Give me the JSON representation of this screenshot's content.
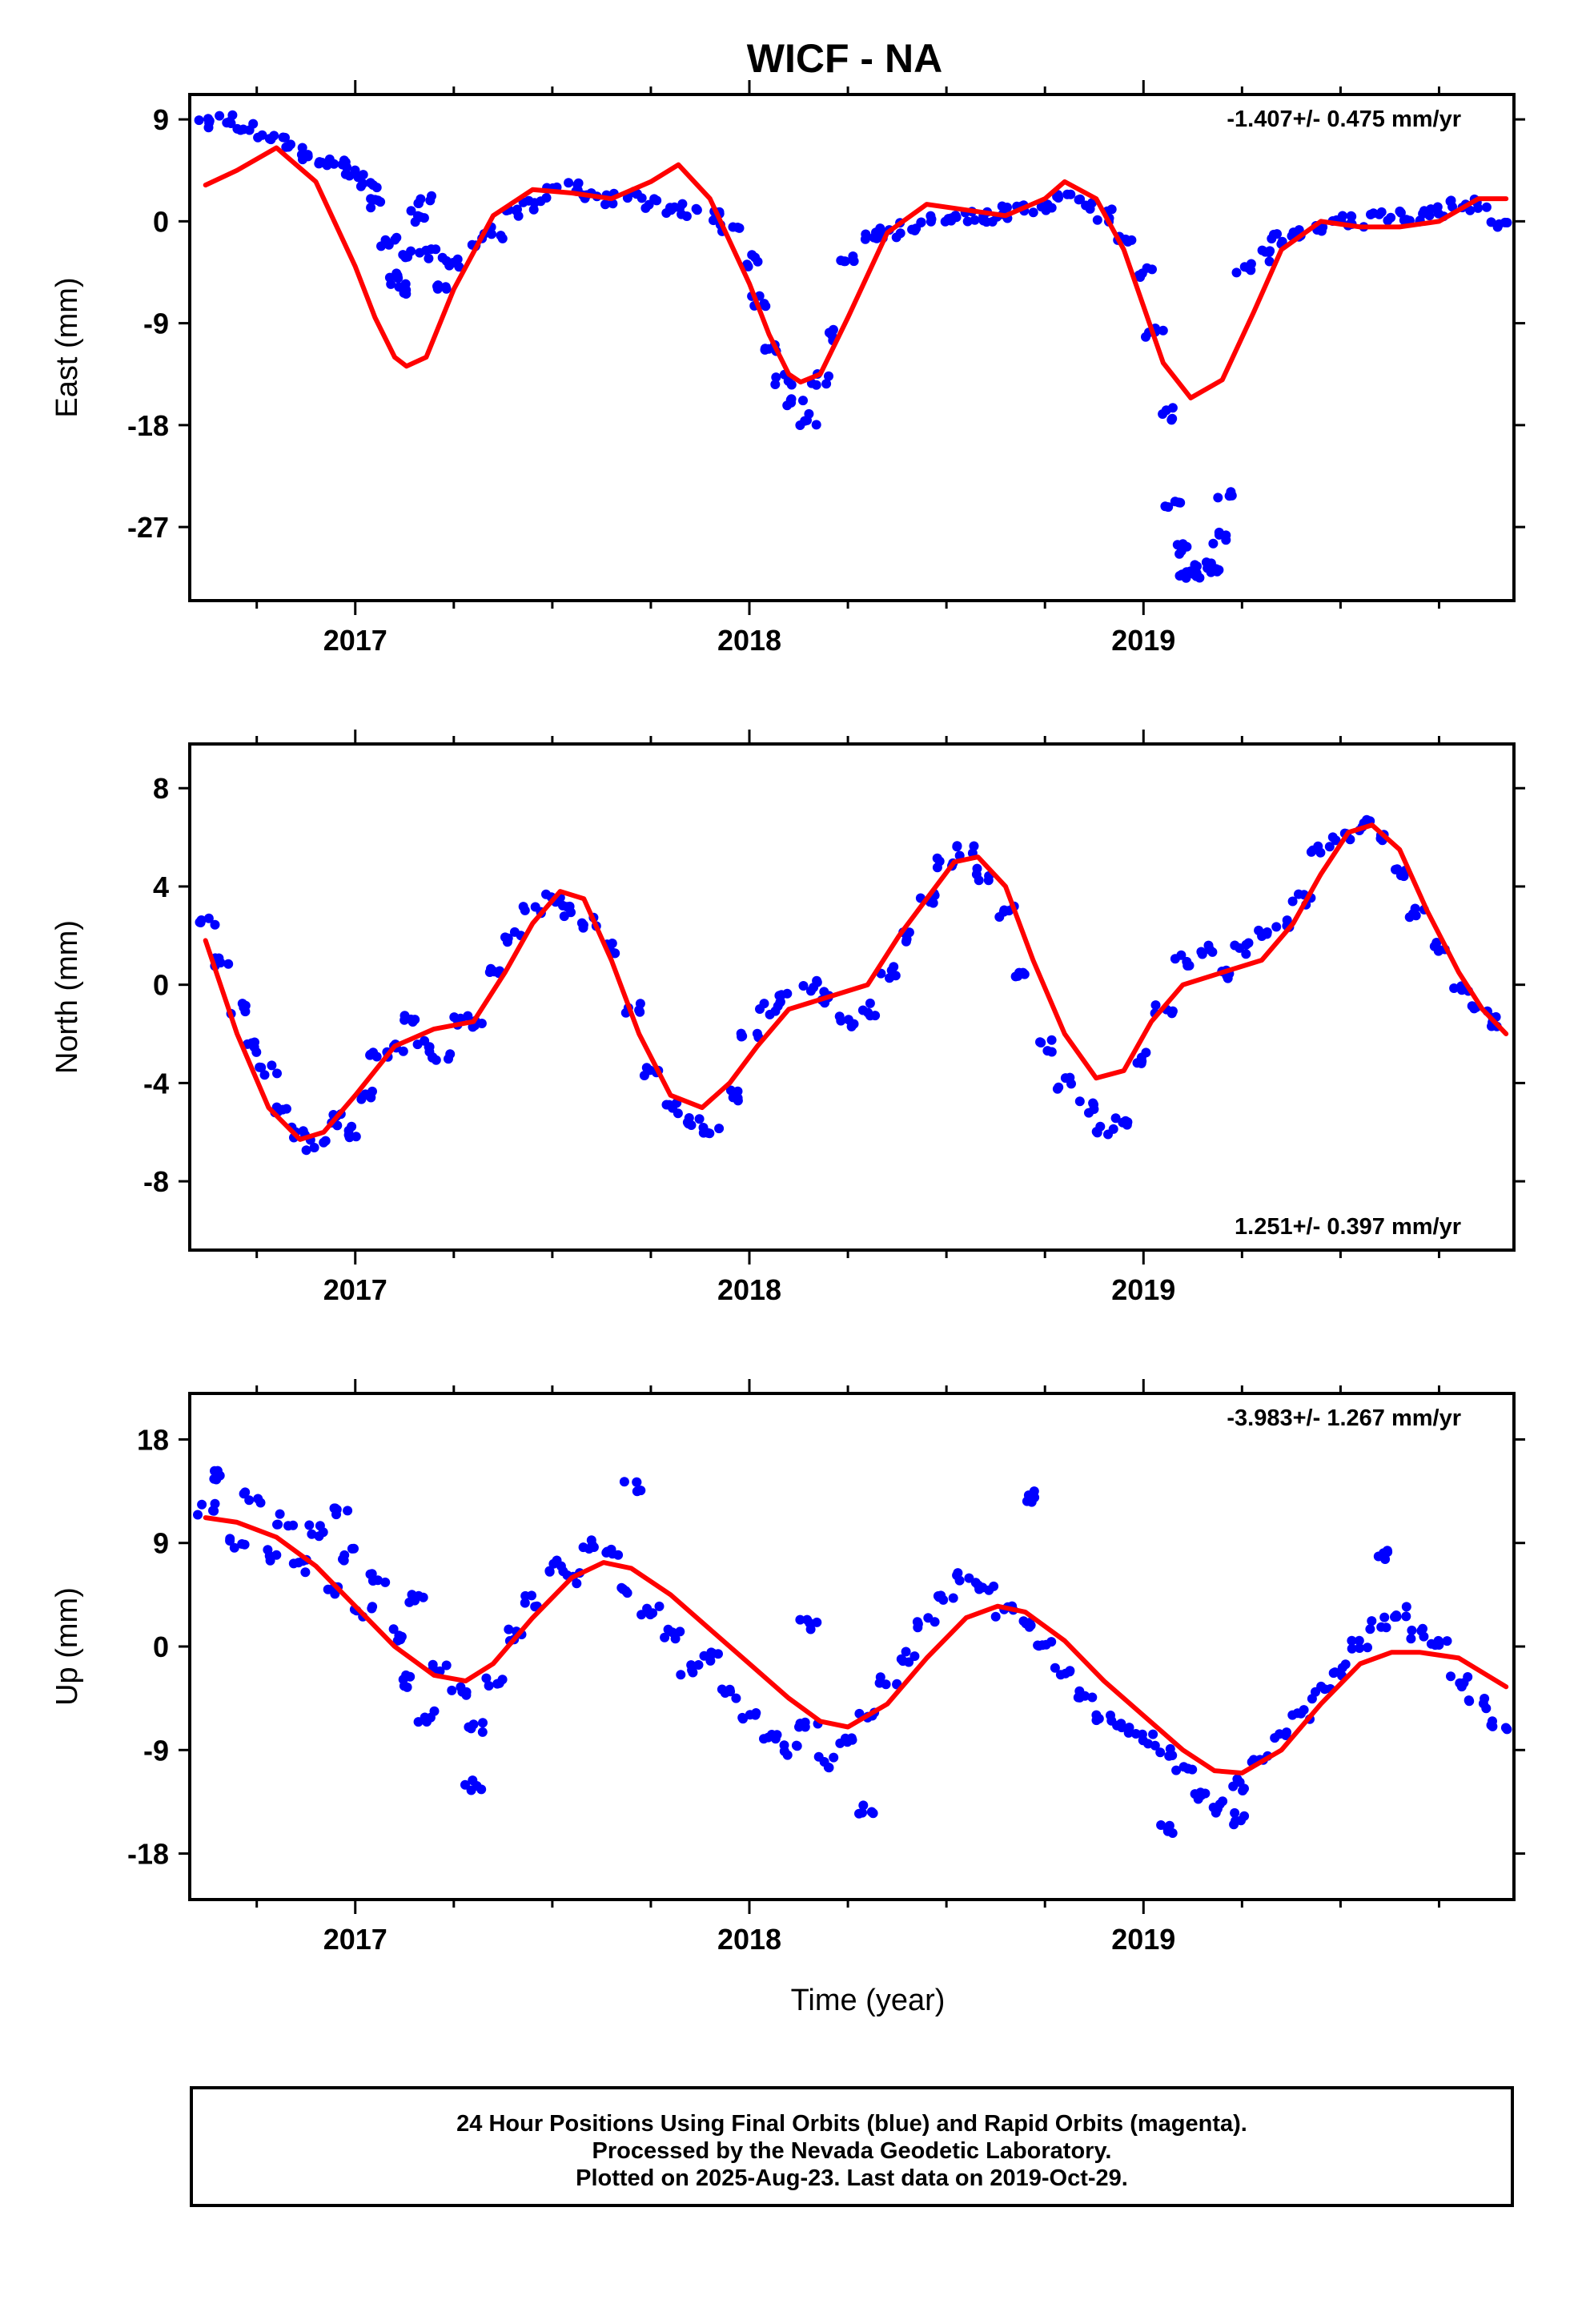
{
  "title": "WICF - NA",
  "footer": {
    "line1": "24 Hour Positions Using Final Orbits (blue) and Rapid Orbits (magenta).",
    "line2": "Processed by the Nevada Geodetic Laboratory.",
    "line3": "Plotted on 2025-Aug-23. Last data on 2019-Oct-29."
  },
  "chart_data": [
    {
      "type": "scatter",
      "panel": "east",
      "ylabel": "East (mm)",
      "xlim": [
        2016.58,
        2019.94
      ],
      "ylim": [
        -33.5,
        11.2
      ],
      "yticks": [
        9,
        0,
        -9,
        -18,
        -27
      ],
      "xticks": [
        2017,
        2018,
        2019
      ],
      "xtick_labels": [
        "2017",
        "2018",
        "2019"
      ],
      "rate_text": "-1.407+/- 0.475 mm/yr",
      "rate_position": "top-right",
      "series": [
        {
          "kind": "points",
          "color": "#0000ff",
          "x": [
            2016.62,
            2016.67,
            2016.72,
            2016.77,
            2016.82,
            2016.87,
            2016.92,
            2016.97,
            2017.0,
            2017.03,
            2017.06,
            2017.09,
            2017.1,
            2017.12,
            2017.14,
            2017.16,
            2017.18,
            2017.2,
            2017.22,
            2017.25,
            2017.3,
            2017.35,
            2017.4,
            2017.45,
            2017.5,
            2017.55,
            2017.6,
            2017.65,
            2017.7,
            2017.75,
            2017.8,
            2017.85,
            2017.9,
            2017.95,
            2018.0,
            2018.03,
            2018.06,
            2018.09,
            2018.12,
            2018.15,
            2018.18,
            2018.21,
            2018.25,
            2018.3,
            2018.35,
            2018.4,
            2018.45,
            2018.5,
            2018.55,
            2018.6,
            2018.65,
            2018.7,
            2018.75,
            2018.8,
            2018.85,
            2018.9,
            2018.95,
            2019.0,
            2019.03,
            2019.05,
            2019.07,
            2019.09,
            2019.11,
            2019.13,
            2019.15,
            2019.17,
            2019.19,
            2019.21,
            2019.25,
            2019.3,
            2019.35,
            2019.4,
            2019.45,
            2019.5,
            2019.55,
            2019.6,
            2019.65,
            2019.7,
            2019.75,
            2019.8,
            2019.85,
            2019.9
          ],
          "y": [
            8.5,
            9.0,
            8.2,
            7.6,
            7.0,
            6.0,
            5.5,
            5.0,
            4.0,
            3.0,
            1.5,
            -2.0,
            -5.0,
            -6.0,
            -3.0,
            0.5,
            2.0,
            -3.0,
            -6.0,
            -3.5,
            -2.0,
            -1.0,
            0.5,
            1.5,
            2.5,
            3.0,
            2.5,
            2.0,
            2.5,
            1.5,
            1.0,
            1.0,
            0.5,
            -0.5,
            -3.5,
            -7.0,
            -11.0,
            -14.0,
            -16.0,
            -17.5,
            -14.0,
            -10.0,
            -3.5,
            -1.5,
            -1.0,
            -0.5,
            0.0,
            0.5,
            0.5,
            0.5,
            0.8,
            1.0,
            1.5,
            2.0,
            1.5,
            0.5,
            -1.5,
            -4.5,
            -10.0,
            -17.0,
            -25.0,
            -29.0,
            -31.5,
            -31.0,
            -30.5,
            -30.5,
            -28.0,
            -24.0,
            -4.0,
            -3.0,
            -1.5,
            -1.0,
            -0.5,
            0.0,
            0.0,
            0.5,
            0.5,
            0.5,
            1.0,
            1.5,
            1.5,
            0.0
          ]
        },
        {
          "kind": "line",
          "color": "#ff0000",
          "x": [
            2016.62,
            2016.7,
            2016.8,
            2016.9,
            2017.0,
            2017.05,
            2017.1,
            2017.13,
            2017.18,
            2017.25,
            2017.35,
            2017.45,
            2017.55,
            2017.65,
            2017.75,
            2017.82,
            2017.9,
            2018.0,
            2018.05,
            2018.1,
            2018.13,
            2018.18,
            2018.25,
            2018.35,
            2018.45,
            2018.55,
            2018.65,
            2018.75,
            2018.8,
            2018.88,
            2018.95,
            2019.0,
            2019.05,
            2019.12,
            2019.2,
            2019.28,
            2019.35,
            2019.45,
            2019.55,
            2019.65,
            2019.75,
            2019.85,
            2019.92
          ],
          "y": [
            3.2,
            4.5,
            6.5,
            3.5,
            -4.0,
            -8.5,
            -12.0,
            -12.8,
            -12.0,
            -6.0,
            0.5,
            2.8,
            2.5,
            2.0,
            3.5,
            5.0,
            2.0,
            -5.5,
            -10.0,
            -13.5,
            -14.2,
            -13.5,
            -8.5,
            -1.0,
            1.5,
            1.0,
            0.5,
            2.0,
            3.5,
            2.0,
            -2.5,
            -7.5,
            -12.5,
            -15.6,
            -14.0,
            -8.0,
            -2.5,
            0.0,
            -0.5,
            -0.5,
            0.0,
            2.0,
            2.0
          ]
        }
      ]
    },
    {
      "type": "scatter",
      "panel": "north",
      "ylabel": "North (mm)",
      "xlim": [
        2016.58,
        2019.94
      ],
      "ylim": [
        -10.8,
        9.8
      ],
      "yticks": [
        8,
        4,
        0,
        -4,
        -8
      ],
      "xticks": [
        2017,
        2018,
        2019
      ],
      "xtick_labels": [
        "2017",
        "2018",
        "2019"
      ],
      "rate_text": "1.251+/- 0.397 mm/yr",
      "rate_position": "bottom-right",
      "series": [
        {
          "kind": "points",
          "color": "#0000ff",
          "x": [
            2016.62,
            2016.66,
            2016.7,
            2016.74,
            2016.78,
            2016.82,
            2016.86,
            2016.9,
            2016.94,
            2016.98,
            2017.02,
            2017.06,
            2017.1,
            2017.14,
            2017.18,
            2017.22,
            2017.26,
            2017.3,
            2017.35,
            2017.4,
            2017.45,
            2017.5,
            2017.55,
            2017.6,
            2017.65,
            2017.7,
            2017.75,
            2017.8,
            2017.85,
            2017.9,
            2017.95,
            2018.0,
            2018.05,
            2018.1,
            2018.15,
            2018.2,
            2018.25,
            2018.3,
            2018.35,
            2018.4,
            2018.45,
            2018.5,
            2018.55,
            2018.6,
            2018.65,
            2018.7,
            2018.75,
            2018.8,
            2018.85,
            2018.9,
            2018.95,
            2019.0,
            2019.05,
            2019.1,
            2019.15,
            2019.2,
            2019.25,
            2019.3,
            2019.35,
            2019.4,
            2019.45,
            2019.5,
            2019.55,
            2019.6,
            2019.65,
            2019.7,
            2019.75,
            2019.8,
            2019.85,
            2019.9
          ],
          "y": [
            2.5,
            1.0,
            -1.0,
            -2.5,
            -3.5,
            -5.0,
            -6.0,
            -6.5,
            -5.5,
            -6.0,
            -4.5,
            -3.0,
            -2.5,
            -1.5,
            -2.5,
            -3.0,
            -1.5,
            -1.5,
            0.5,
            2.0,
            3.0,
            3.5,
            3.0,
            2.5,
            1.5,
            -1.0,
            -3.5,
            -5.0,
            -5.5,
            -6.0,
            -4.5,
            -2.0,
            -1.0,
            -0.5,
            0.0,
            -0.5,
            -1.5,
            -1.0,
            0.5,
            2.0,
            3.5,
            5.0,
            5.5,
            4.5,
            3.0,
            0.5,
            -2.5,
            -4.0,
            -5.0,
            -6.0,
            -5.5,
            -3.0,
            -1.0,
            1.0,
            1.5,
            0.5,
            1.5,
            2.0,
            2.5,
            3.5,
            5.5,
            6.0,
            6.5,
            6.0,
            4.5,
            3.0,
            1.5,
            0.0,
            -1.0,
            -1.5
          ]
        },
        {
          "kind": "line",
          "color": "#ff0000",
          "x": [
            2016.62,
            2016.7,
            2016.78,
            2016.86,
            2016.92,
            2017.0,
            2017.1,
            2017.2,
            2017.3,
            2017.38,
            2017.45,
            2017.52,
            2017.58,
            2017.65,
            2017.72,
            2017.8,
            2017.88,
            2017.95,
            2018.02,
            2018.1,
            2018.2,
            2018.3,
            2018.38,
            2018.45,
            2018.52,
            2018.58,
            2018.65,
            2018.72,
            2018.8,
            2018.88,
            2018.95,
            2019.02,
            2019.1,
            2019.2,
            2019.3,
            2019.38,
            2019.45,
            2019.52,
            2019.58,
            2019.65,
            2019.72,
            2019.8,
            2019.86,
            2019.92
          ],
          "y": [
            1.8,
            -2.0,
            -5.0,
            -6.3,
            -6.0,
            -4.5,
            -2.5,
            -1.8,
            -1.5,
            0.5,
            2.5,
            3.8,
            3.5,
            1.0,
            -2.0,
            -4.5,
            -5.0,
            -4.0,
            -2.5,
            -1.0,
            -0.5,
            0.0,
            2.0,
            3.5,
            5.0,
            5.2,
            4.0,
            1.0,
            -2.0,
            -3.8,
            -3.5,
            -1.5,
            0.0,
            0.5,
            1.0,
            2.5,
            4.5,
            6.2,
            6.5,
            5.5,
            3.0,
            0.5,
            -1.0,
            -2.0
          ]
        }
      ]
    },
    {
      "type": "scatter",
      "panel": "up",
      "ylabel": "Up (mm)",
      "xlabel": "Time (year)",
      "xlim": [
        2016.58,
        2019.94
      ],
      "ylim": [
        -22,
        22
      ],
      "yticks": [
        18,
        9,
        0,
        -9,
        -18
      ],
      "xticks": [
        2017,
        2018,
        2019
      ],
      "xtick_labels": [
        "2017",
        "2018",
        "2019"
      ],
      "rate_text": "-3.983+/- 1.267 mm/yr",
      "rate_position": "top-right",
      "series": [
        {
          "kind": "points",
          "color": "#0000ff",
          "x": [
            2016.62,
            2016.66,
            2016.7,
            2016.74,
            2016.78,
            2016.82,
            2016.86,
            2016.9,
            2016.94,
            2016.98,
            2017.02,
            2017.06,
            2017.1,
            2017.14,
            2017.18,
            2017.22,
            2017.26,
            2017.3,
            2017.35,
            2017.4,
            2017.45,
            2017.5,
            2017.55,
            2017.6,
            2017.65,
            2017.7,
            2017.75,
            2017.8,
            2017.85,
            2017.9,
            2017.95,
            2018.0,
            2018.05,
            2018.1,
            2018.15,
            2018.2,
            2018.25,
            2018.3,
            2018.35,
            2018.4,
            2018.45,
            2018.5,
            2018.55,
            2018.6,
            2018.65,
            2018.7,
            2018.75,
            2018.8,
            2018.85,
            2018.9,
            2018.95,
            2019.0,
            2019.05,
            2019.1,
            2019.15,
            2019.2,
            2019.25,
            2019.3,
            2019.35,
            2019.4,
            2019.45,
            2019.5,
            2019.55,
            2019.6,
            2019.65,
            2019.7,
            2019.75,
            2019.8,
            2019.85,
            2019.9,
            2019.06,
            2016.96,
            2017.3,
            2017.7,
            2018.3,
            2018.7,
            2019.25,
            2019.6,
            2017.15,
            2018.15
          ],
          "y": [
            12,
            15,
            9,
            13,
            8,
            11,
            7,
            10,
            5,
            8,
            3,
            6,
            1,
            -3,
            -6,
            -2,
            -4,
            -7,
            -3,
            1,
            4,
            7,
            6,
            9,
            8,
            5,
            3,
            1,
            -2,
            -1,
            -4,
            -6,
            -8,
            -9,
            -7,
            -10,
            -8,
            -6,
            -3,
            -1,
            2,
            4,
            6,
            5,
            3,
            2,
            0,
            -2,
            -4,
            -6,
            -7,
            -8,
            -9,
            -11,
            -13,
            -14,
            -12,
            -10,
            -8,
            -6,
            -4,
            -2,
            0,
            2,
            3,
            1,
            0,
            -3,
            -5,
            -7,
            -16,
            12,
            -12,
            14,
            -14,
            13,
            -15,
            8,
            4,
            2
          ]
        },
        {
          "kind": "line",
          "color": "#ff0000",
          "x": [
            2016.62,
            2016.7,
            2016.8,
            2016.9,
            2017.0,
            2017.1,
            2017.2,
            2017.28,
            2017.35,
            2017.45,
            2017.55,
            2017.63,
            2017.7,
            2017.8,
            2017.9,
            2018.0,
            2018.1,
            2018.18,
            2018.25,
            2018.35,
            2018.45,
            2018.55,
            2018.63,
            2018.7,
            2018.8,
            2018.9,
            2019.0,
            2019.1,
            2019.18,
            2019.25,
            2019.35,
            2019.45,
            2019.55,
            2019.63,
            2019.7,
            2019.8,
            2019.92
          ],
          "y": [
            11.2,
            10.8,
            9.5,
            7.0,
            3.5,
            0.0,
            -2.5,
            -3.0,
            -1.5,
            2.5,
            6.0,
            7.3,
            6.8,
            4.5,
            1.5,
            -1.5,
            -4.5,
            -6.5,
            -7.0,
            -5.0,
            -1.0,
            2.5,
            3.5,
            3.0,
            0.5,
            -3.0,
            -6.0,
            -9.0,
            -10.8,
            -11.0,
            -9.0,
            -5.0,
            -1.5,
            -0.5,
            -0.5,
            -1.0,
            -3.5
          ]
        }
      ]
    }
  ]
}
